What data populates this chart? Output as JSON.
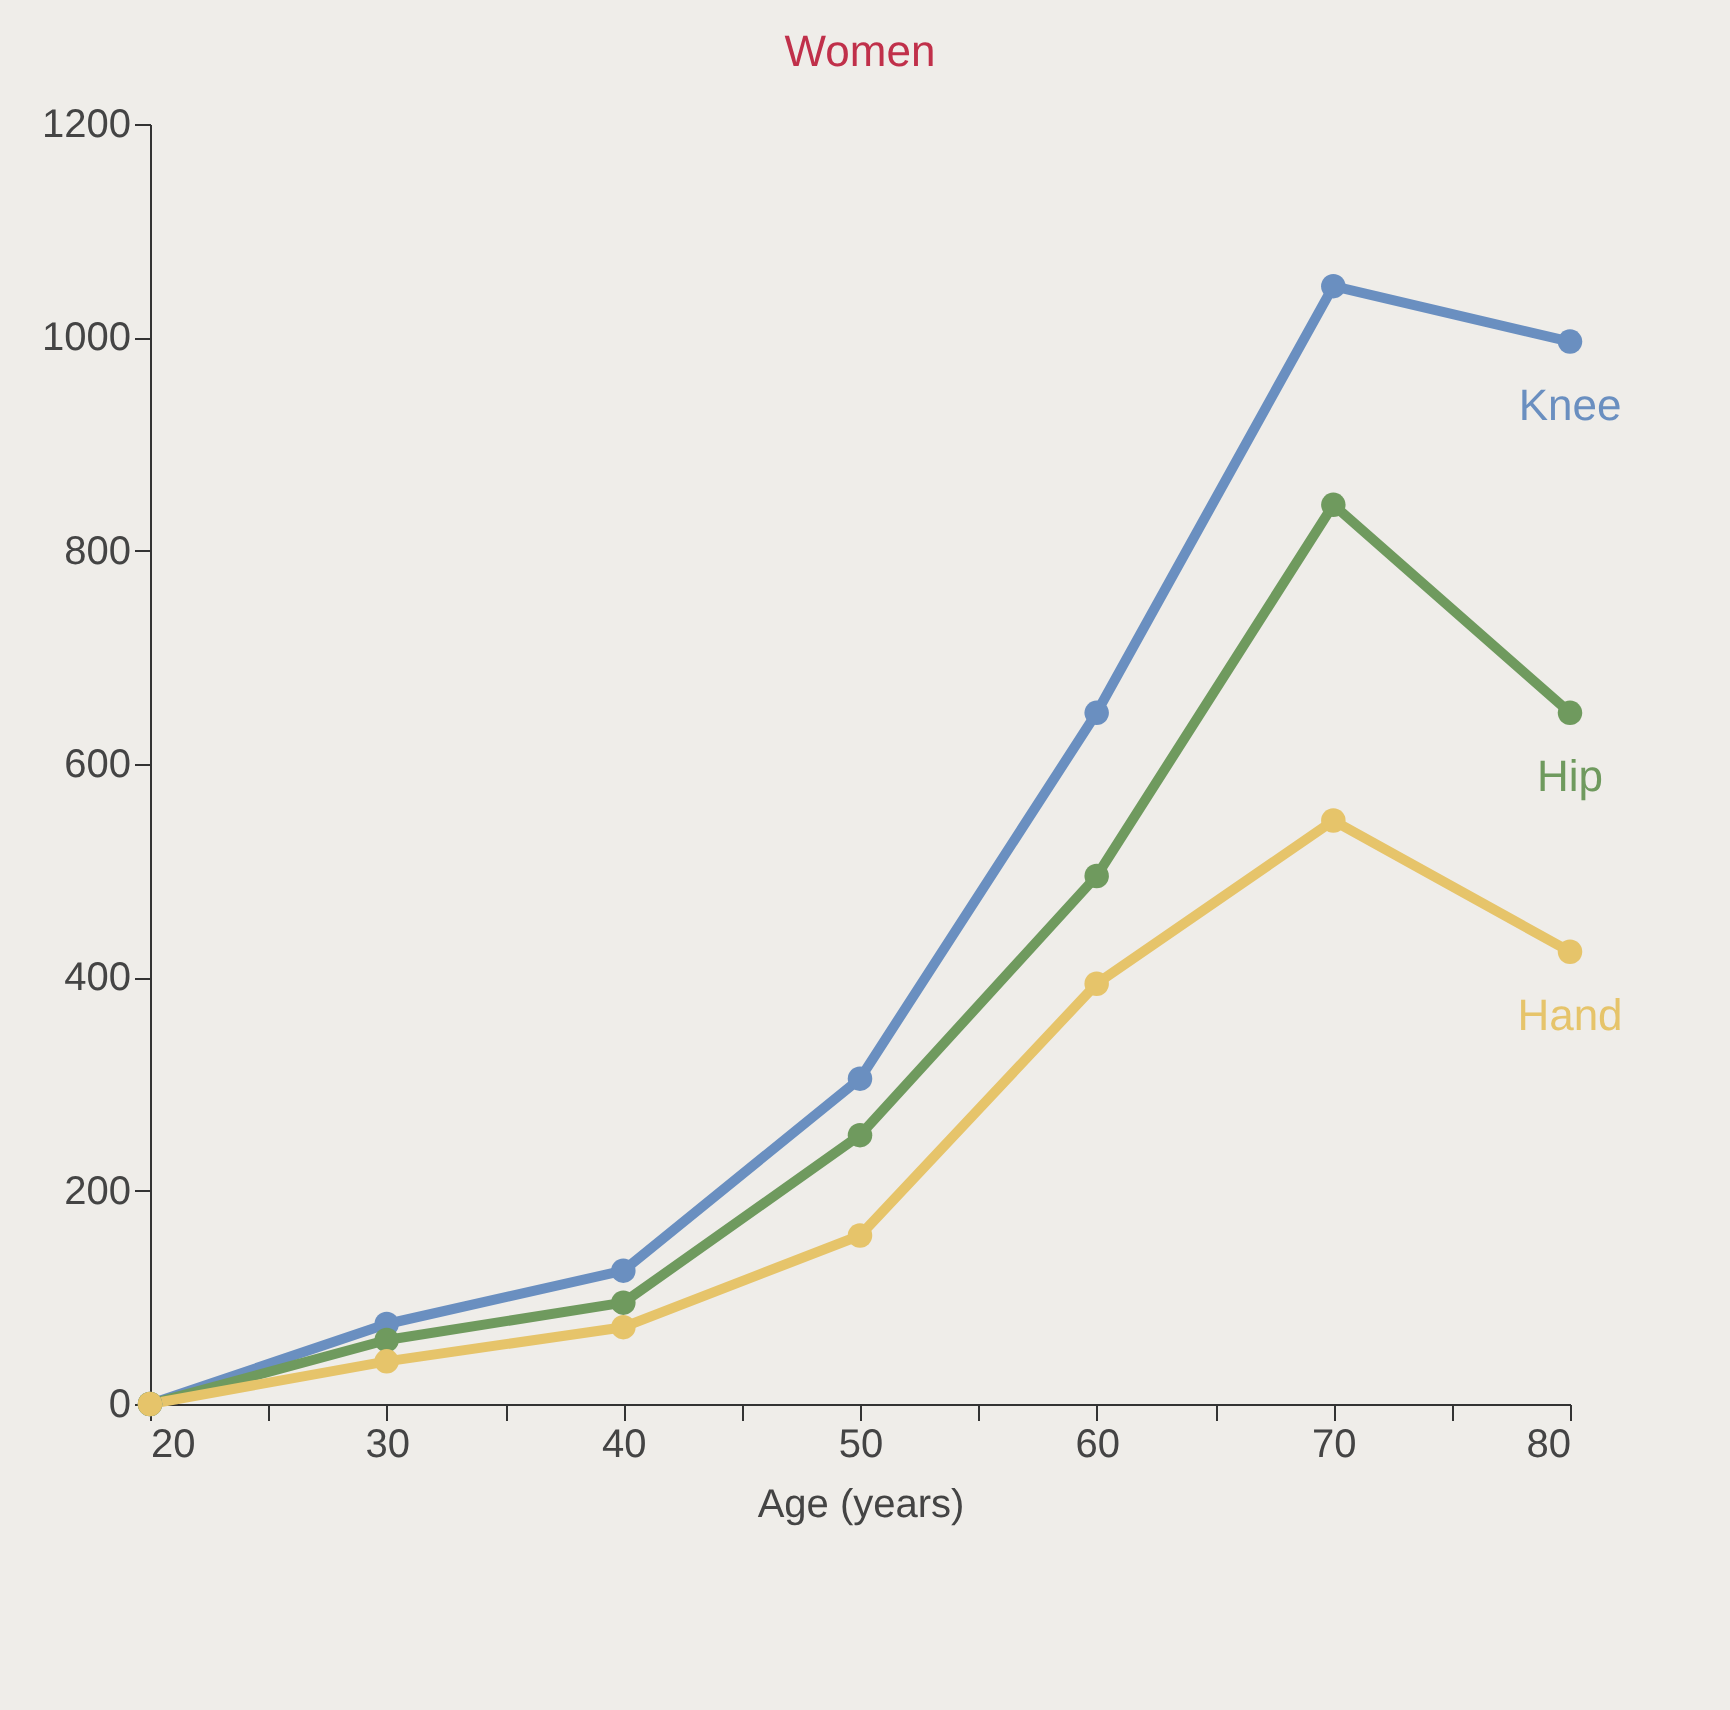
{
  "chart_data": {
    "type": "line",
    "title": "Women",
    "xlabel": "Age (years)",
    "x": [
      20,
      30,
      40,
      50,
      60,
      70,
      80
    ],
    "series": [
      {
        "name": "Knee",
        "color": "#6a8fc0",
        "values": [
          0,
          75,
          125,
          305,
          648,
          1048,
          996
        ]
      },
      {
        "name": "Hip",
        "color": "#6f9a5e",
        "values": [
          0,
          60,
          95,
          252,
          495,
          843,
          648
        ]
      },
      {
        "name": "Hand",
        "color": "#e6c46a",
        "values": [
          0,
          40,
          72,
          158,
          394,
          547,
          424
        ]
      }
    ],
    "xlim": [
      20,
      80
    ],
    "xticks": [
      20,
      {
        "value": 25,
        "label": null
      },
      30,
      {
        "value": 35,
        "label": null
      },
      40,
      {
        "value": 45,
        "label": null
      },
      50,
      {
        "value": 55,
        "label": null
      },
      60,
      {
        "value": 65,
        "label": null
      },
      70,
      {
        "value": 75,
        "label": null
      },
      80
    ],
    "ylim": [
      0,
      1200
    ],
    "yticks": [
      0,
      200,
      400,
      600,
      800,
      1000,
      1200
    ],
    "grid": false,
    "legend": false,
    "marker": "circle",
    "line_style": "solid"
  }
}
